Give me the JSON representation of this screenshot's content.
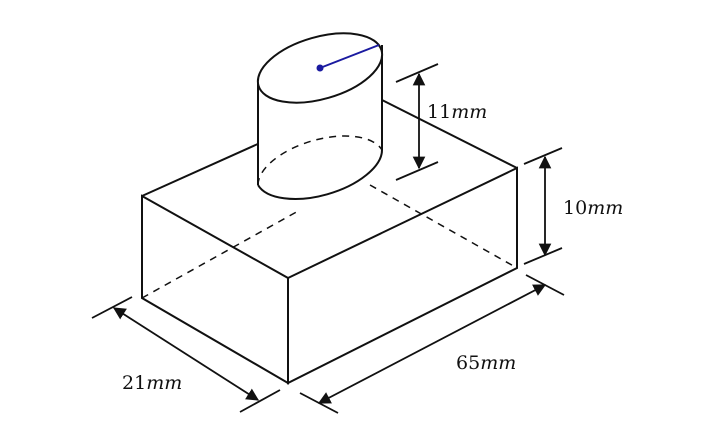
{
  "figure": {
    "colors": {
      "line": "#111111",
      "radius": "#1a1aa0"
    },
    "dimensions": {
      "cylinder_height": {
        "value": "11",
        "unit": "mm"
      },
      "box_height": {
        "value": "10",
        "unit": "mm"
      },
      "box_depth": {
        "value": "21",
        "unit": "mm"
      },
      "box_length": {
        "value": "65",
        "unit": "mm"
      }
    }
  }
}
